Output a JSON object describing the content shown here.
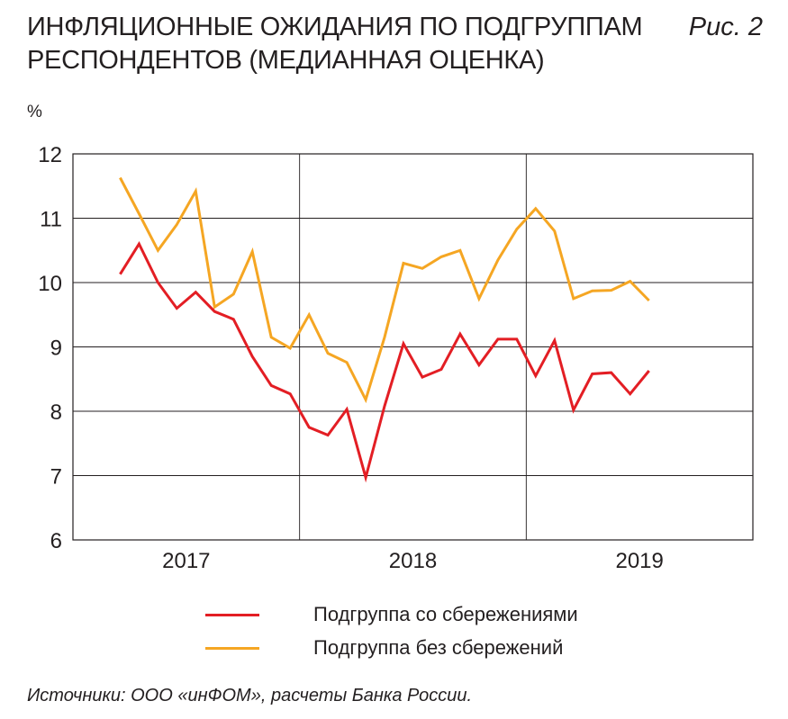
{
  "header": {
    "title_line1": "ИНФЛЯЦИОННЫЕ ОЖИДАНИЯ ПО ПОДГРУППАМ",
    "title_line2": "РЕСПОНДЕНТОВ (МЕДИАННАЯ ОЦЕНКА)",
    "figure_label": "Рис. 2"
  },
  "footer": {
    "source": "Источники: ООО «инФОМ», расчеты Банка России."
  },
  "chart_data": {
    "type": "line",
    "title": "ИНФЛЯЦИОННЫЕ ОЖИДАНИЯ ПО ПОДГРУППАМ РЕСПОНДЕНТОВ (МЕДИАННАЯ ОЦЕНКА)",
    "ylabel": "%",
    "xlabel": "",
    "ylim": [
      6,
      12
    ],
    "yticks": [
      6,
      7,
      8,
      9,
      10,
      11,
      12
    ],
    "xlim": [
      0,
      36
    ],
    "x_tick_labels": [
      {
        "label": "2017",
        "x": 6
      },
      {
        "label": "2018",
        "x": 18
      },
      {
        "label": "2019",
        "x": 30
      }
    ],
    "x_gridlines": [
      12,
      24
    ],
    "grid": true,
    "legend_position": "bottom",
    "x": [
      2.5,
      3.5,
      4.5,
      5.5,
      6.5,
      7.5,
      8.5,
      9.5,
      10.5,
      11.5,
      12.5,
      13.5,
      14.5,
      15.5,
      16.5,
      17.5,
      18.5,
      19.5,
      20.5,
      21.5,
      22.5,
      23.5,
      24.5,
      25.5,
      26.5,
      27.5,
      28.5,
      29.5,
      30.5
    ],
    "series": [
      {
        "name": "Подгруппа со сбережениями",
        "color": "#e31e24",
        "values": [
          10.13,
          10.6,
          10.0,
          9.6,
          9.85,
          9.55,
          9.43,
          8.85,
          8.4,
          8.27,
          7.75,
          7.63,
          8.03,
          6.97,
          8.08,
          9.05,
          8.53,
          8.65,
          9.2,
          8.72,
          9.12,
          9.12,
          8.55,
          9.1,
          8.02,
          8.58,
          8.6,
          8.27,
          8.63
        ]
      },
      {
        "name": "Подгруппа без сбережений",
        "color": "#f5a623",
        "values": [
          11.63,
          11.07,
          10.5,
          10.9,
          11.42,
          9.62,
          9.82,
          10.48,
          9.15,
          8.98,
          9.5,
          8.9,
          8.76,
          8.18,
          9.15,
          10.3,
          10.22,
          10.4,
          10.5,
          9.75,
          10.35,
          10.83,
          11.15,
          10.8,
          9.75,
          9.87,
          9.88,
          10.02,
          9.72
        ]
      }
    ]
  }
}
